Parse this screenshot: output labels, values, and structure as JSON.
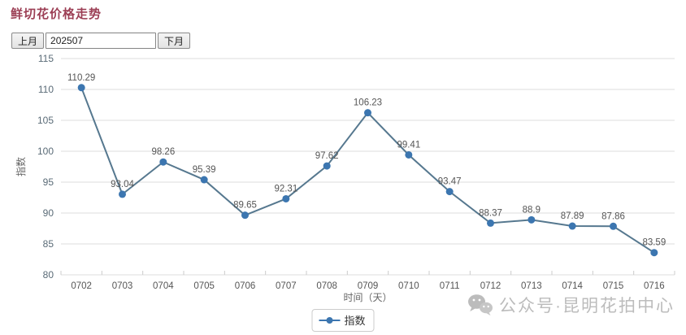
{
  "page": {
    "title": "鲜切花价格走势"
  },
  "controls": {
    "prev_label": "上月",
    "month_value": "202507",
    "next_label": "下月"
  },
  "chart_data": {
    "type": "line",
    "title": "鲜切花价格走势",
    "categories": [
      "0702",
      "0703",
      "0704",
      "0705",
      "0706",
      "0707",
      "0708",
      "0709",
      "0710",
      "0711",
      "0712",
      "0713",
      "0714",
      "0715",
      "0716"
    ],
    "series": [
      {
        "name": "指数",
        "values": [
          110.29,
          93.04,
          98.26,
          95.39,
          89.65,
          92.31,
          97.62,
          106.23,
          99.41,
          93.47,
          88.37,
          88.9,
          87.89,
          87.86,
          83.59
        ]
      }
    ],
    "xlabel": "时间（天）",
    "ylabel": "指数",
    "ylim": [
      80,
      115
    ],
    "ytick_step": 5,
    "grid": true,
    "legend_position": "bottom",
    "data_labels": true,
    "line_color": "#56788f",
    "point_color": "#3c76b0"
  },
  "legend": {
    "label": "指数"
  },
  "watermark": {
    "icon": "wechat-icon",
    "text": "公众号·昆明花拍中心"
  },
  "colors": {
    "title": "#9c3f55",
    "grid": "#dddddd",
    "label_text": "#555555",
    "watermark": "#bcbcbc"
  }
}
